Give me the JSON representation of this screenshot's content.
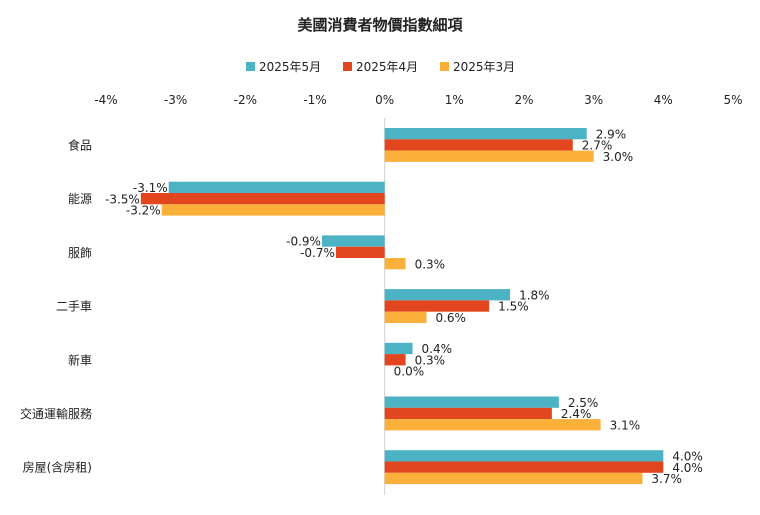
{
  "chart_data": {
    "type": "bar",
    "orientation": "horizontal",
    "title": "美國消費者物價指數細項",
    "categories": [
      "食品",
      "能源",
      "服飾",
      "二手車",
      "新車",
      "交通運輸服務",
      "房屋(含房租)"
    ],
    "series": [
      {
        "name": "2025年5月",
        "color": "#4BB3C3",
        "values": [
          2.9,
          -3.1,
          -0.9,
          1.8,
          0.4,
          2.5,
          4.0
        ]
      },
      {
        "name": "2025年4月",
        "color": "#E2461F",
        "values": [
          2.7,
          -3.5,
          -0.7,
          1.5,
          0.3,
          2.4,
          4.0
        ]
      },
      {
        "name": "2025年3月",
        "color": "#FBB03B",
        "values": [
          3.0,
          -3.2,
          0.3,
          0.6,
          0.0,
          3.1,
          3.7
        ]
      }
    ],
    "value_labels": [
      [
        "2.9%",
        "-3.1%",
        "-0.9%",
        "1.8%",
        "0.4%",
        "2.5%",
        "4.0%"
      ],
      [
        "2.7%",
        "-3.5%",
        "-0.7%",
        "1.5%",
        "0.3%",
        "2.4%",
        "4.0%"
      ],
      [
        "3.0%",
        "-3.2%",
        "0.3%",
        "0.6%",
        "0.0%",
        "3.1%",
        "3.7%"
      ]
    ],
    "xlim": [
      -4,
      5
    ],
    "xticks": [
      -4,
      -3,
      -2,
      -1,
      0,
      1,
      2,
      3,
      4,
      5
    ],
    "xtick_labels": [
      "-4%",
      "-3%",
      "-2%",
      "-1%",
      "0%",
      "1%",
      "2%",
      "3%",
      "4%",
      "5%"
    ],
    "axis_position": "top",
    "legend_position": "top",
    "grid": false
  }
}
